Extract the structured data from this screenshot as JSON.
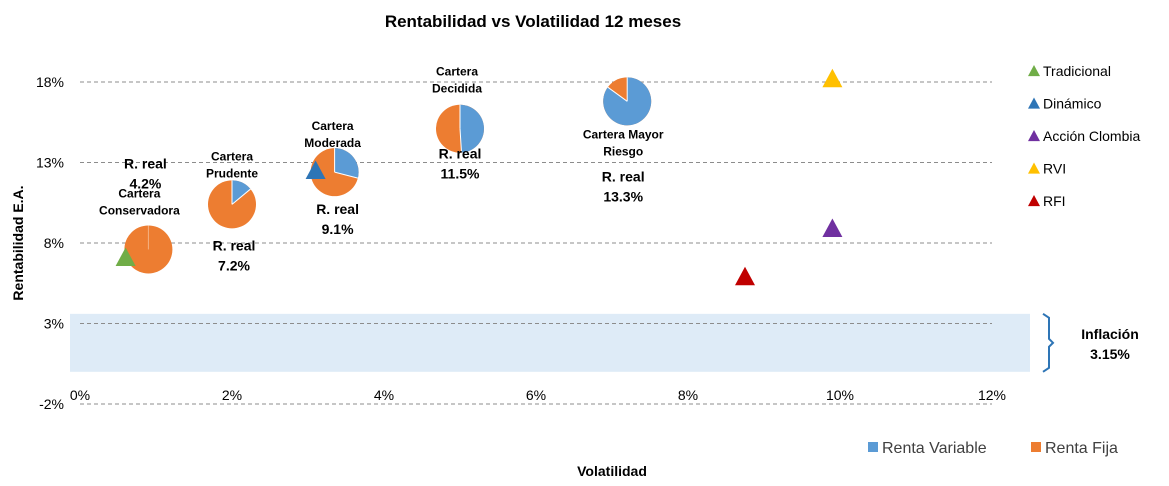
{
  "chart_data": {
    "type": "scatter",
    "title": "Rentabilidad vs Volatilidad 12 meses",
    "xlabel": "Volatilidad",
    "ylabel": "Rentabilidad E.A.",
    "xlim": [
      0,
      12
    ],
    "ylim": [
      -2,
      18
    ],
    "x_ticks": [
      "0%",
      "2%",
      "4%",
      "6%",
      "8%",
      "10%",
      "12%"
    ],
    "y_ticks": [
      "-2%",
      "3%",
      "8%",
      "13%",
      "18%"
    ],
    "grid": "horizontal dashed",
    "inflation_band": {
      "ymin": 0,
      "ymax": 3.6,
      "label": "Inflación",
      "value": "3.15%"
    },
    "portfolios": [
      {
        "name_lines": [
          "Cartera",
          "Conservadora"
        ],
        "x": 0.9,
        "y": 7.6,
        "renta_variable_pct": 0,
        "r_real": [
          "R. real",
          "4.2%"
        ]
      },
      {
        "name_lines": [
          "Cartera",
          "Prudente"
        ],
        "x": 2.0,
        "y": 10.4,
        "renta_variable_pct": 14,
        "r_real": [
          "R. real",
          "7.2%"
        ]
      },
      {
        "name_lines": [
          "Cartera",
          "Moderada"
        ],
        "x": 3.35,
        "y": 12.4,
        "renta_variable_pct": 29,
        "r_real": [
          "R. real",
          "9.1%"
        ]
      },
      {
        "name_lines": [
          "Cartera",
          "Decidida"
        ],
        "x": 5.0,
        "y": 15.1,
        "renta_variable_pct": 49,
        "r_real": [
          "R. real",
          "11.5%"
        ]
      },
      {
        "name_lines": [
          "Cartera Mayor",
          "Riesgo"
        ],
        "x": 7.2,
        "y": 16.8,
        "renta_variable_pct": 85,
        "r_real": [
          "R. real",
          "13.3%"
        ]
      }
    ],
    "benchmarks": [
      {
        "name": "Tradicional",
        "x": 0.6,
        "y": 7.1,
        "color": "#70AD47"
      },
      {
        "name": "Dinámico",
        "x": 3.1,
        "y": 12.5,
        "color": "#2E75B6"
      },
      {
        "name": "Acción Clombia",
        "x": 9.9,
        "y": 8.9,
        "color": "#7030A0"
      },
      {
        "name": "RVI",
        "x": 9.9,
        "y": 18.2,
        "color": "#FFC000"
      },
      {
        "name": "RFI",
        "x": 8.75,
        "y": 5.9,
        "color": "#C00000"
      }
    ],
    "pie_legend": [
      {
        "name": "Renta Variable",
        "color": "#5B9BD5"
      },
      {
        "name": "Renta Fija",
        "color": "#ED7D31"
      }
    ]
  }
}
